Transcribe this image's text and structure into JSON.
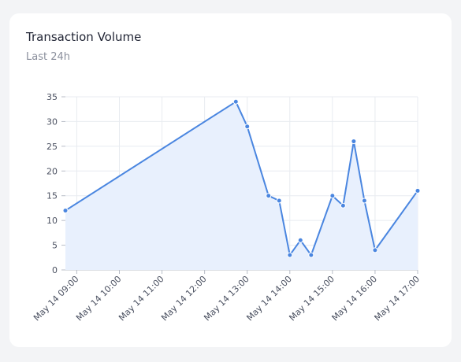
{
  "chart_data": {
    "type": "area-line",
    "title": "Transaction Volume",
    "subtitle": "Last 24h",
    "x": [
      "May 14 08:44",
      "May 14 12:44",
      "May 14 13:00",
      "May 14 13:30",
      "May 14 13:45",
      "May 14 14:00",
      "May 14 14:15",
      "May 14 14:30",
      "May 14 15:00",
      "May 14 15:15",
      "May 14 15:30",
      "May 14 15:45",
      "May 14 16:00",
      "May 14 17:00"
    ],
    "values": [
      12,
      34,
      29,
      15,
      14,
      3,
      6,
      3,
      15,
      13,
      26,
      14,
      4,
      16
    ],
    "color": "#4a86e0",
    "fill": "#e8f0fd",
    "xlim": [
      "May 14 08:44",
      "May 14 17:00"
    ],
    "xticks": [
      "May 14 09:00",
      "May 14 10:00",
      "May 14 11:00",
      "May 14 12:00",
      "May 14 13:00",
      "May 14 14:00",
      "May 14 15:00",
      "May 14 16:00",
      "May 14 17:00"
    ],
    "ylim": [
      0,
      35
    ],
    "yticks": [
      0,
      5,
      10,
      15,
      20,
      25,
      30,
      35
    ],
    "grid": true
  }
}
